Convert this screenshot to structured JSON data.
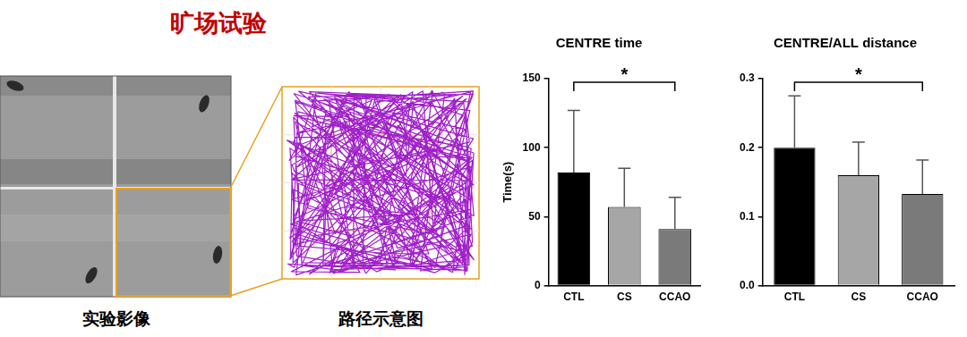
{
  "title": "旷场试验",
  "image_captions": [
    "实验影像",
    "路径示意图"
  ],
  "chart_data": [
    {
      "type": "bar",
      "title": "CENTRE time",
      "y_label": "Time(s)",
      "categories": [
        "CTL",
        "CS",
        "CCAO"
      ],
      "values": [
        82,
        57,
        41
      ],
      "errors": [
        45,
        28,
        23
      ],
      "colors": [
        "#000000",
        "#a6a6a6",
        "#7a7a7a"
      ],
      "ylim": [
        0,
        150
      ],
      "yticks": [
        0,
        50,
        100,
        150
      ],
      "grid": false,
      "annotations": [
        {
          "text": "*",
          "from": "CTL",
          "to": "CCAO"
        }
      ]
    },
    {
      "type": "bar",
      "title": "CENTRE/ALL distance",
      "categories": [
        "CTL",
        "CS",
        "CCAO"
      ],
      "values": [
        0.2,
        0.16,
        0.133
      ],
      "errors": [
        0.075,
        0.048,
        0.049
      ],
      "colors": [
        "#000000",
        "#a6a6a6",
        "#7a7a7a"
      ],
      "ylim": [
        0,
        0.3
      ],
      "yticks": [
        {
          "value": 0,
          "label": "0.0"
        },
        0.1,
        0.2,
        0.3
      ],
      "grid": false,
      "annotations": [
        {
          "text": "*",
          "from": "CTL",
          "to": "CCAO"
        }
      ]
    }
  ]
}
